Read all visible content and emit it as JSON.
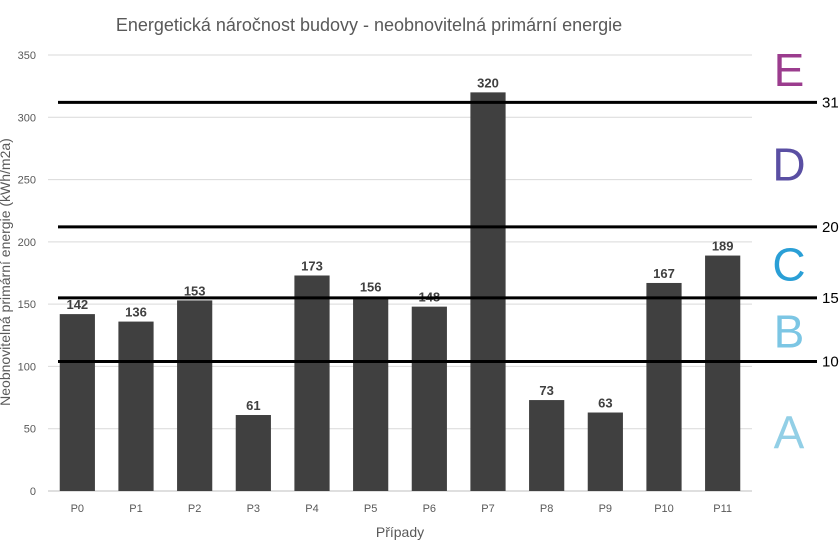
{
  "chart_data": {
    "type": "bar",
    "title": "Energetická náročnost budovy - neobnovitelná primární energie",
    "xlabel": "Případy",
    "ylabel": "Neobnovitelná primární energie (kWh/m2a)",
    "categories": [
      "P0",
      "P1",
      "P2",
      "P3",
      "P4",
      "P5",
      "P6",
      "P7",
      "P8",
      "P9",
      "P10",
      "P11"
    ],
    "values": [
      142,
      136,
      153,
      61,
      173,
      156,
      148,
      320,
      73,
      63,
      167,
      189
    ],
    "data_labels": [
      "142",
      "136",
      "153",
      "61",
      "173",
      "156",
      "148",
      "320",
      "73",
      "63",
      "167",
      "189"
    ],
    "ylim": [
      0,
      350
    ],
    "yticks": [
      0,
      50,
      100,
      150,
      200,
      250,
      300,
      350
    ],
    "ytick_labels": [
      "0",
      "50",
      "100",
      "150",
      "200",
      "250",
      "300",
      "350"
    ],
    "grid": true,
    "bar_color": "#404040",
    "thresholds": [
      {
        "value": 104,
        "label": "10"
      },
      {
        "value": 155,
        "label": "15"
      },
      {
        "value": 212,
        "label": "20"
      },
      {
        "value": 312,
        "label": "31"
      }
    ],
    "class_labels": [
      {
        "text": "A",
        "value": 47,
        "color": "#92cfe6"
      },
      {
        "text": "B",
        "value": 128,
        "color": "#7cc6e4"
      },
      {
        "text": "C",
        "value": 182,
        "color": "#2a9fd6"
      },
      {
        "text": "D",
        "value": 262,
        "color": "#5a4fa3"
      },
      {
        "text": "E",
        "value": 338,
        "color": "#9b3c8e"
      }
    ]
  }
}
